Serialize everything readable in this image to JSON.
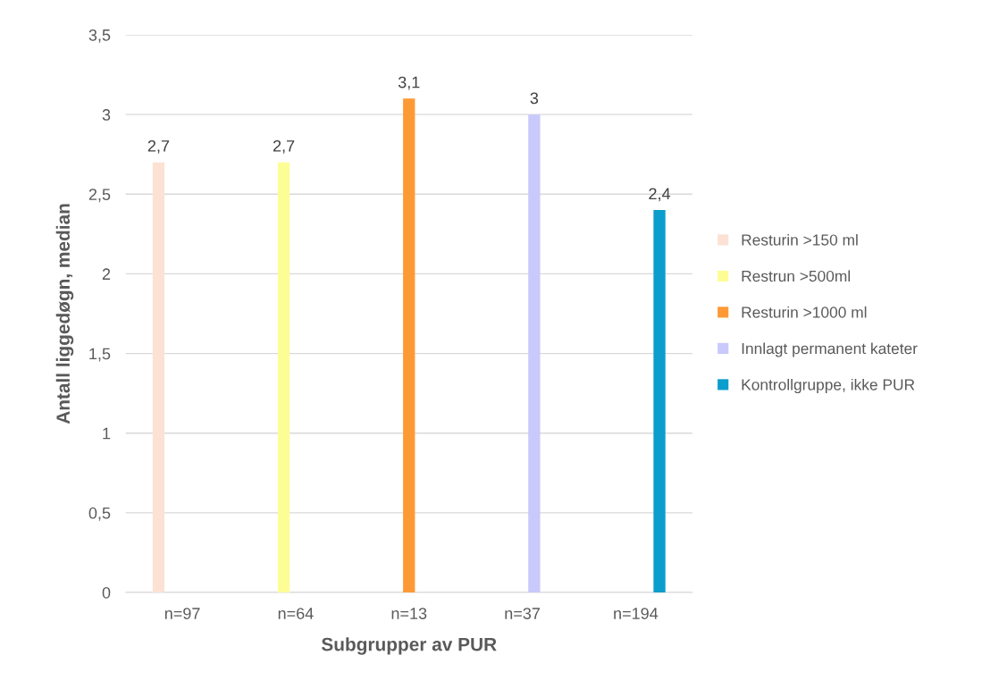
{
  "chart_data": {
    "type": "bar",
    "xlabel": "Subgrupper av PUR",
    "ylabel": "Antall liggedøgn, median",
    "categories": [
      "n=97",
      "n=64",
      "n=13",
      "n=37",
      "n=194"
    ],
    "series": [
      {
        "name": "Resturin >150 ml",
        "color": "#fbe2d5",
        "values": [
          2.7,
          null,
          null,
          null,
          null
        ],
        "value_labels": [
          "2,7",
          null,
          null,
          null,
          null
        ]
      },
      {
        "name": "Restrun >500ml",
        "color": "#fdfd96",
        "values": [
          null,
          2.7,
          null,
          null,
          null
        ],
        "value_labels": [
          null,
          "2,7",
          null,
          null,
          null
        ]
      },
      {
        "name": "Resturin >1000 ml",
        "color": "#fd9a35",
        "values": [
          null,
          null,
          3.1,
          null,
          null
        ],
        "value_labels": [
          null,
          null,
          "3,1",
          null,
          null
        ]
      },
      {
        "name": "Innlagt permanent kateter",
        "color": "#c9c9fb",
        "values": [
          null,
          null,
          null,
          3,
          null
        ],
        "value_labels": [
          null,
          null,
          null,
          "3",
          null
        ]
      },
      {
        "name": "Kontrollgruppe, ikke PUR",
        "color": "#0b9dcc",
        "values": [
          null,
          null,
          null,
          null,
          2.4
        ],
        "value_labels": [
          null,
          null,
          null,
          null,
          "2,4"
        ]
      }
    ],
    "ylim": [
      0,
      3.5
    ],
    "yticks": [
      0,
      {
        "value": 0.5,
        "label": "0,5"
      },
      1,
      {
        "value": 1.5,
        "label": "1,5"
      },
      2,
      {
        "value": 2.5,
        "label": "2,5"
      },
      3,
      {
        "value": 3.5,
        "label": "3,5"
      }
    ],
    "grid": "y",
    "legend": "right"
  }
}
